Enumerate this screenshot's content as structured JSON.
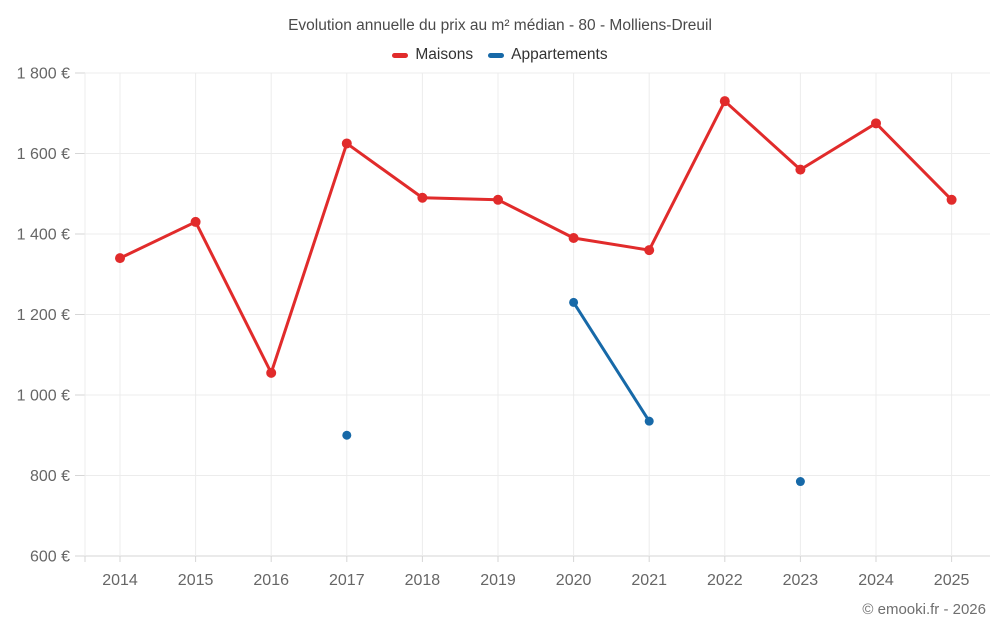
{
  "chart_data": {
    "type": "line",
    "title": "Evolution annuelle du prix au m² médian - 80 - Molliens-Dreuil",
    "x": [
      2014,
      2015,
      2016,
      2017,
      2018,
      2019,
      2020,
      2021,
      2022,
      2023,
      2024,
      2025
    ],
    "series": [
      {
        "name": "Maisons",
        "color": "#e12b2b",
        "values": [
          1340,
          1430,
          1055,
          1625,
          1490,
          1485,
          1390,
          1360,
          1730,
          1560,
          1675,
          1485
        ]
      },
      {
        "name": "Appartements",
        "color": "#1769a8",
        "values": [
          null,
          null,
          null,
          900,
          null,
          null,
          1230,
          935,
          null,
          785,
          null,
          null
        ]
      }
    ],
    "ylim": [
      600,
      1800
    ],
    "ytick_step": 200,
    "ytick_labels": [
      "600 €",
      "800 €",
      "1 000 €",
      "1 200 €",
      "1 400 €",
      "1 600 €",
      "1 800 €"
    ],
    "y_unit": "€",
    "grid": true,
    "legend_position": "top"
  },
  "footer": {
    "copyright": "© emooki.fr - 2026"
  },
  "colors": {
    "background": "#ffffff",
    "grid": "#ececec",
    "axis": "#d6d6d6",
    "tick_label": "#666666",
    "title": "#4a4a4a",
    "legend_text": "#333333",
    "copyright": "#6f6f6f"
  }
}
